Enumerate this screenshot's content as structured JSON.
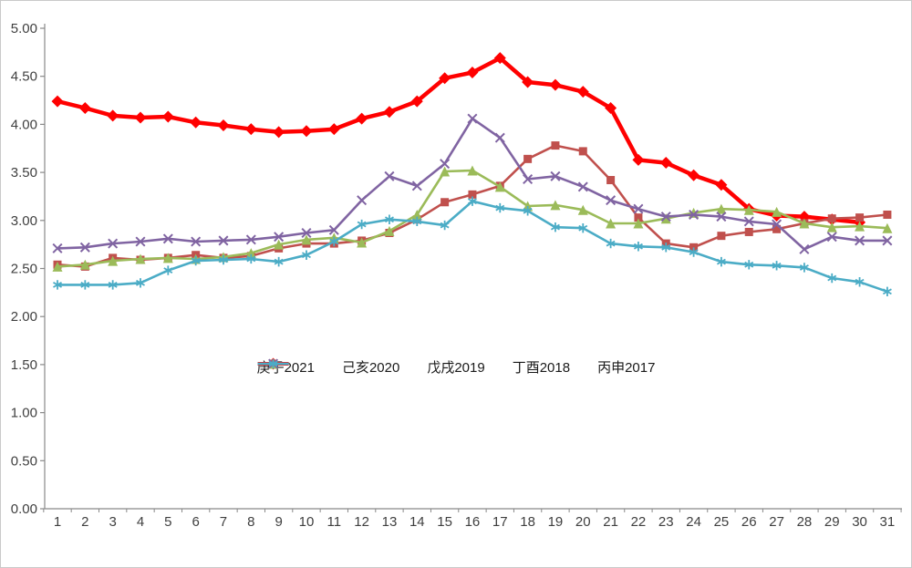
{
  "chart_data": {
    "type": "line",
    "title": "",
    "xlabel": "",
    "ylabel": "",
    "x": [
      1,
      2,
      3,
      4,
      5,
      6,
      7,
      8,
      9,
      10,
      11,
      12,
      13,
      14,
      15,
      16,
      17,
      18,
      19,
      20,
      21,
      22,
      23,
      24,
      25,
      26,
      27,
      28,
      29,
      30,
      31
    ],
    "ylim": [
      0.0,
      5.0
    ],
    "ytick_step": 0.5,
    "grid": false,
    "legend_position": "inside-center-middle",
    "series": [
      {
        "name": "庚子2021",
        "color": "#ff0000",
        "marker": "diamond",
        "values": [
          4.24,
          4.17,
          4.09,
          4.07,
          4.08,
          4.02,
          3.99,
          3.95,
          3.92,
          3.93,
          3.95,
          4.06,
          4.13,
          4.24,
          4.48,
          4.54,
          4.69,
          4.44,
          4.41,
          4.34,
          4.17,
          3.63,
          3.6,
          3.47,
          3.37,
          3.12,
          3.05,
          3.04,
          3.01,
          2.98,
          null
        ]
      },
      {
        "name": "己亥2020",
        "color": "#c0504d",
        "marker": "square",
        "values": [
          2.54,
          2.52,
          2.61,
          2.59,
          2.61,
          2.64,
          2.61,
          2.63,
          2.71,
          2.76,
          2.76,
          2.79,
          2.87,
          3.01,
          3.19,
          3.27,
          3.36,
          3.64,
          3.78,
          3.72,
          3.42,
          3.03,
          2.76,
          2.72,
          2.84,
          2.88,
          2.91,
          2.97,
          3.02,
          3.03,
          3.06
        ]
      },
      {
        "name": "戊戌2019",
        "color": "#9bbb59",
        "marker": "triangle",
        "values": [
          2.52,
          2.54,
          2.58,
          2.6,
          2.61,
          2.6,
          2.62,
          2.66,
          2.75,
          2.8,
          2.82,
          2.77,
          2.89,
          3.06,
          3.51,
          3.52,
          3.35,
          3.15,
          3.16,
          3.11,
          2.97,
          2.97,
          3.02,
          3.08,
          3.12,
          3.11,
          3.09,
          2.97,
          2.93,
          2.94,
          2.92
        ]
      },
      {
        "name": "丁酉2018",
        "color": "#8064a2",
        "marker": "x",
        "values": [
          2.71,
          2.72,
          2.76,
          2.78,
          2.81,
          2.78,
          2.79,
          2.8,
          2.83,
          2.87,
          2.9,
          3.21,
          3.46,
          3.36,
          3.59,
          4.06,
          3.86,
          3.43,
          3.46,
          3.35,
          3.21,
          3.12,
          3.04,
          3.06,
          3.04,
          2.99,
          2.96,
          2.7,
          2.83,
          2.79,
          2.79
        ]
      },
      {
        "name": "丙申2017",
        "color": "#4bacc6",
        "marker": "asterisk",
        "values": [
          2.33,
          2.33,
          2.33,
          2.35,
          2.48,
          2.58,
          2.59,
          2.6,
          2.57,
          2.64,
          2.78,
          2.96,
          3.01,
          2.99,
          2.95,
          3.2,
          3.13,
          3.1,
          2.93,
          2.92,
          2.76,
          2.73,
          2.72,
          2.67,
          2.57,
          2.54,
          2.53,
          2.51,
          2.4,
          2.36,
          2.26
        ]
      }
    ]
  },
  "axes": {
    "y_labels": [
      "5.00",
      "4.50",
      "4.00",
      "3.50",
      "3.00",
      "2.50",
      "2.00",
      "1.50",
      "1.00",
      "0.50",
      "0.00"
    ],
    "x_labels": [
      "1",
      "2",
      "3",
      "4",
      "5",
      "6",
      "7",
      "8",
      "9",
      "10",
      "11",
      "12",
      "13",
      "14",
      "15",
      "16",
      "17",
      "18",
      "19",
      "20",
      "21",
      "22",
      "23",
      "24",
      "25",
      "26",
      "27",
      "28",
      "29",
      "30",
      "31"
    ],
    "axis_color": "#898989",
    "label_color": "#3f3f3f"
  }
}
